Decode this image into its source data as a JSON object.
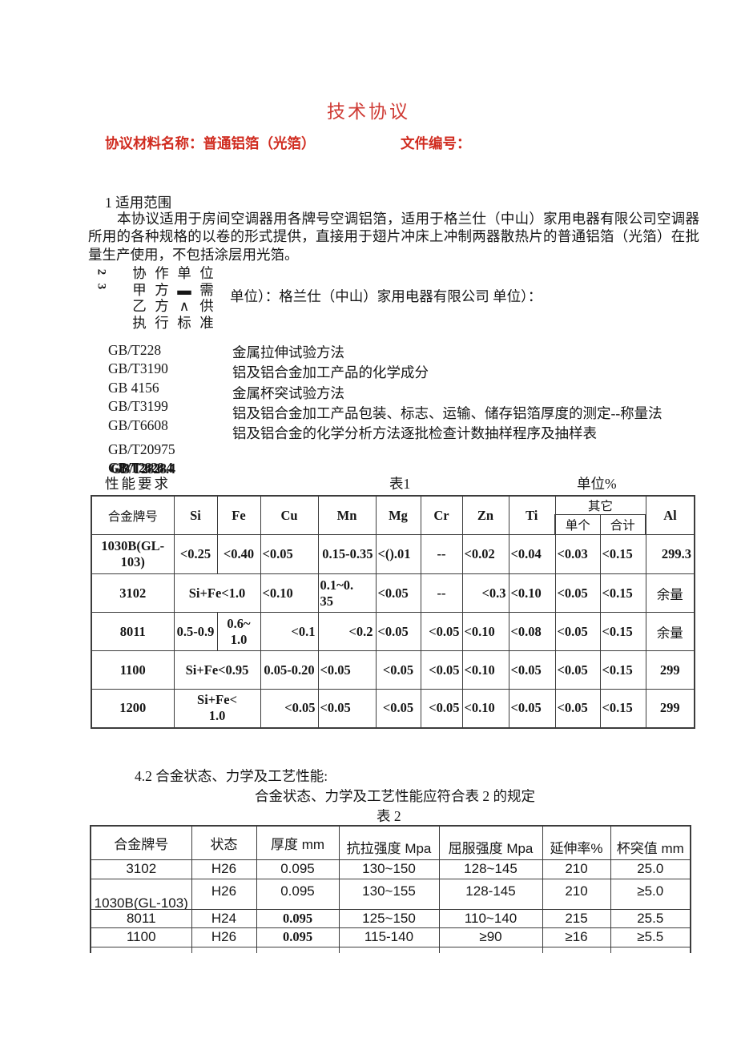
{
  "title": "技术协议",
  "meta": {
    "material_label": "协议材料名称：普通铝箔（光箔）",
    "doc_no_label": "文件编号："
  },
  "section1": {
    "heading": "1 适用范围",
    "body": "本协议适用于房间空调器用各牌号空调铝箔，适用于格兰仕（中山）家用电器有限公司空调器所用的各种规格的以卷的形式提供，直接用于翅片冲床上冲制两器散热片的普通铝箔（光箔）在批量生产使用，不包括涂层用光箔。"
  },
  "garbled": {
    "digits": [
      "2",
      "3"
    ],
    "grid": [
      [
        "协",
        "作",
        "单",
        "位"
      ],
      [
        "甲",
        "方",
        "▬",
        "需"
      ],
      [
        "乙",
        "方",
        "∧",
        "供"
      ],
      [
        "执",
        "行",
        "标",
        "准"
      ]
    ],
    "line": "单位）：格兰仕（中山）家用电器有限公司 单位）："
  },
  "standards": {
    "codes": [
      "GB/T228",
      "GB/T3190",
      "GB 4156",
      "GB/T3199",
      "GB/T6608",
      "GB/T20975",
      "GB/T2828.4"
    ],
    "descs": [
      "金属拉伸试验方法",
      "铝及铝合金加工产品的化学成分",
      "金属杯突试验方法",
      "铝及铝合金加工产品包装、标志、运输、储存铝箔厚度的测定--称量法",
      "铝及铝合金的化学分析方法逐批检查计数抽样程序及抽样表"
    ]
  },
  "table1": {
    "caption_left": "性能要求",
    "caption_center": "表1",
    "caption_right": "单位%",
    "header": {
      "first": "合金牌号",
      "elements": [
        "Si",
        "Fe",
        "Cu",
        "Mn",
        "Mg",
        "Cr",
        "Zn",
        "Ti"
      ],
      "other": "其它",
      "other_sub": [
        "单个",
        "合计"
      ],
      "last": "Al"
    },
    "rows": [
      [
        {
          "t": "1030B(GL-\n103)"
        },
        {
          "t": "<0.25"
        },
        {
          "t": "<0.40"
        },
        {
          "t": "<0.05",
          "a": "l"
        },
        {
          "t": "0.15-0.35",
          "a": "r"
        },
        {
          "t": "<().01",
          "a": "l"
        },
        {
          "t": "--"
        },
        {
          "t": "<0.02",
          "a": "l"
        },
        {
          "t": "<0.04",
          "a": "l"
        },
        {
          "t": "<0.03",
          "a": "l"
        },
        {
          "t": "<0.15",
          "a": "l"
        },
        {
          "t": "299.3",
          "a": "r"
        }
      ],
      [
        {
          "t": "3102"
        },
        {
          "t": "Si+Fe<1.0",
          "s": 2
        },
        {
          "t": "<0.10",
          "a": "l"
        },
        {
          "t": "0.1~0.\n35",
          "a": "l"
        },
        {
          "t": "<0.05",
          "a": "l"
        },
        {
          "t": "--"
        },
        {
          "t": "<0.3",
          "a": "r"
        },
        {
          "t": "<0.10",
          "a": "l"
        },
        {
          "t": "<0.05",
          "a": "l"
        },
        {
          "t": "<0.15",
          "a": "l"
        },
        {
          "t": "余量",
          "w": "n"
        }
      ],
      [
        {
          "t": "8011"
        },
        {
          "t": "0.5-0.9"
        },
        {
          "t": "0.6~\n1.0"
        },
        {
          "t": "<0.1",
          "a": "r"
        },
        {
          "t": "<0.2",
          "a": "r"
        },
        {
          "t": "<0.05",
          "a": "l"
        },
        {
          "t": "<0.05",
          "a": "r"
        },
        {
          "t": "<0.10",
          "a": "l"
        },
        {
          "t": "<0.08",
          "a": "l"
        },
        {
          "t": "<0.05",
          "a": "l"
        },
        {
          "t": "<0.15",
          "a": "l"
        },
        {
          "t": "余量",
          "w": "n"
        }
      ],
      [
        {
          "t": "1100"
        },
        {
          "t": "Si+Fe<0.95",
          "s": 2
        },
        {
          "t": "0.05-0.20"
        },
        {
          "t": "<0.05",
          "a": "l"
        },
        {
          "t": "<0.05"
        },
        {
          "t": "<0.05",
          "a": "r"
        },
        {
          "t": "<0.10",
          "a": "l"
        },
        {
          "t": "<0.05",
          "a": "l"
        },
        {
          "t": "<0.05",
          "a": "l"
        },
        {
          "t": "<0.15",
          "a": "l"
        },
        {
          "t": "299"
        }
      ],
      [
        {
          "t": "1200"
        },
        {
          "t": "Si+Fe<\n1.0",
          "s": 2
        },
        {
          "t": "<0.05",
          "a": "r"
        },
        {
          "t": "<0.05",
          "a": "l"
        },
        {
          "t": "<0.05"
        },
        {
          "t": "<0.05",
          "a": "r"
        },
        {
          "t": "<0.10",
          "a": "l"
        },
        {
          "t": "<0.05",
          "a": "l"
        },
        {
          "t": "<0.05",
          "a": "l"
        },
        {
          "t": "<0.15",
          "a": "l"
        },
        {
          "t": "299"
        }
      ]
    ]
  },
  "section42": {
    "heading": "4.2 合金状态、力学及工艺性能:",
    "body": "合金状态、力学及工艺性能应符合表 2 的规定"
  },
  "table2": {
    "caption": "表 2",
    "headers": [
      "合金牌号",
      "状态",
      "厚度 mm",
      "抗拉强度 Mpa",
      "屈服强度 Mpa",
      "延伸率%",
      "杯突值 mm"
    ],
    "rows": [
      [
        {
          "t": "3102"
        },
        {
          "t": "H26"
        },
        {
          "t": "0.095"
        },
        {
          "t": "130~150"
        },
        {
          "t": "128~145"
        },
        {
          "t": "210"
        },
        {
          "t": "25.0"
        }
      ],
      [
        {
          "t": "1030B(GL-103)"
        },
        {
          "t": "H26"
        },
        {
          "t": "0.095"
        },
        {
          "t": "130~155"
        },
        {
          "t": "128-145"
        },
        {
          "t": "210"
        },
        {
          "t": "≥5.0"
        }
      ],
      [
        {
          "t": "8011"
        },
        {
          "t": "H24"
        },
        {
          "t": "0.095",
          "b": true
        },
        {
          "t": "125~150"
        },
        {
          "t": "110~140"
        },
        {
          "t": "215"
        },
        {
          "t": "25.5"
        }
      ],
      [
        {
          "t": "1100"
        },
        {
          "t": "H26"
        },
        {
          "t": "0.095",
          "b": true
        },
        {
          "t": "115-140"
        },
        {
          "t": "≥90"
        },
        {
          "t": "≥16"
        },
        {
          "t": "≥5.5"
        }
      ]
    ]
  }
}
